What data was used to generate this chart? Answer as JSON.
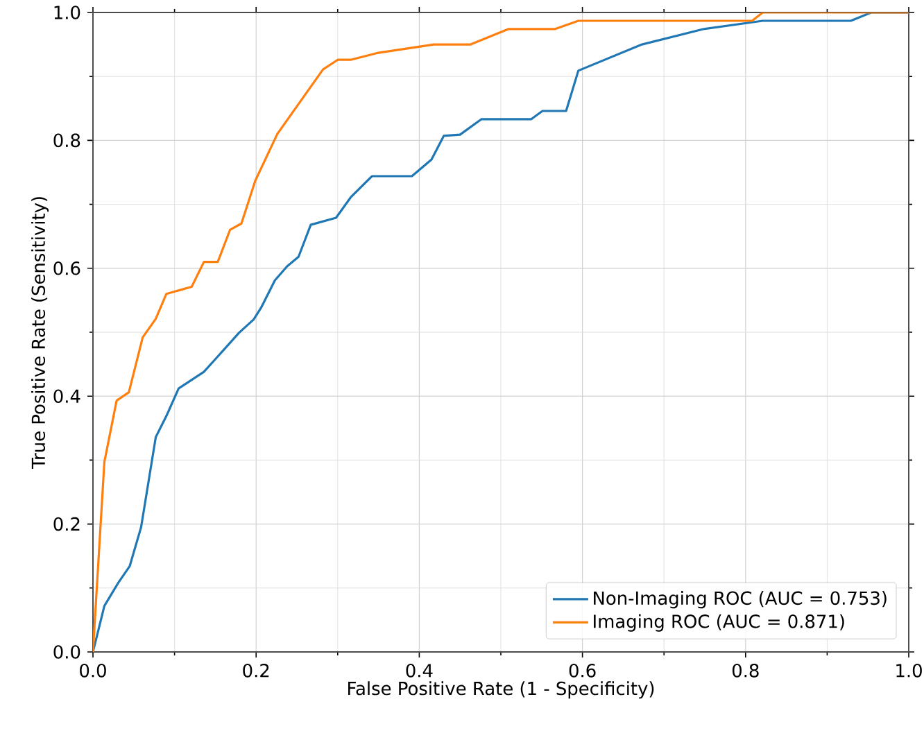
{
  "chart_data": {
    "type": "line",
    "xlabel": "False Positive Rate (1 - Specificity)",
    "ylabel": "True Positive Rate (Sensitivity)",
    "xlim": [
      0,
      1
    ],
    "ylim": [
      0,
      1
    ],
    "xticks": [
      {
        "value": 0,
        "label": "0.0"
      },
      {
        "value": 0.2,
        "label": "0.2"
      },
      {
        "value": 0.4,
        "label": "0.4"
      },
      {
        "value": 0.6,
        "label": "0.6"
      },
      {
        "value": 0.8,
        "label": "0.8"
      },
      {
        "value": 1,
        "label": "1.0"
      }
    ],
    "yticks": [
      {
        "value": 0,
        "label": "0.0"
      },
      {
        "value": 0.2,
        "label": "0.2"
      },
      {
        "value": 0.4,
        "label": "0.4"
      },
      {
        "value": 0.6,
        "label": "0.6"
      },
      {
        "value": 0.8,
        "label": "0.8"
      },
      {
        "value": 1,
        "label": "1.0"
      }
    ],
    "grid": true,
    "legend": "bottom right",
    "series": [
      {
        "name": "Non-Imaging ROC (AUC = 0.753)",
        "color": "#1f77b4",
        "x": [
          0,
          0.014,
          0.031,
          0.045,
          0.059,
          0.077,
          0.09,
          0.105,
          0.136,
          0.153,
          0.179,
          0.197,
          0.206,
          0.223,
          0.238,
          0.252,
          0.267,
          0.298,
          0.316,
          0.342,
          0.391,
          0.415,
          0.43,
          0.45,
          0.476,
          0.537,
          0.551,
          0.58,
          0.595,
          0.673,
          0.748,
          0.821,
          0.929,
          0.954,
          1
        ],
        "values": [
          0,
          0.072,
          0.108,
          0.134,
          0.195,
          0.336,
          0.369,
          0.412,
          0.438,
          0.462,
          0.499,
          0.52,
          0.538,
          0.581,
          0.603,
          0.618,
          0.668,
          0.679,
          0.711,
          0.744,
          0.744,
          0.77,
          0.807,
          0.809,
          0.833,
          0.833,
          0.846,
          0.846,
          0.909,
          0.95,
          0.974,
          0.987,
          0.987,
          1,
          1
        ]
      },
      {
        "name": "Imaging ROC (AUC = 0.871)",
        "color": "#ff7f0e",
        "x": [
          0,
          0.014,
          0.029,
          0.044,
          0.061,
          0.077,
          0.09,
          0.121,
          0.136,
          0.153,
          0.168,
          0.182,
          0.199,
          0.226,
          0.282,
          0.3,
          0.316,
          0.35,
          0.418,
          0.463,
          0.509,
          0.566,
          0.595,
          0.808,
          0.821,
          1
        ],
        "values": [
          0,
          0.297,
          0.393,
          0.406,
          0.492,
          0.521,
          0.56,
          0.571,
          0.61,
          0.61,
          0.66,
          0.67,
          0.737,
          0.81,
          0.911,
          0.926,
          0.926,
          0.937,
          0.95,
          0.95,
          0.974,
          0.974,
          0.987,
          0.987,
          1,
          1
        ]
      }
    ]
  }
}
